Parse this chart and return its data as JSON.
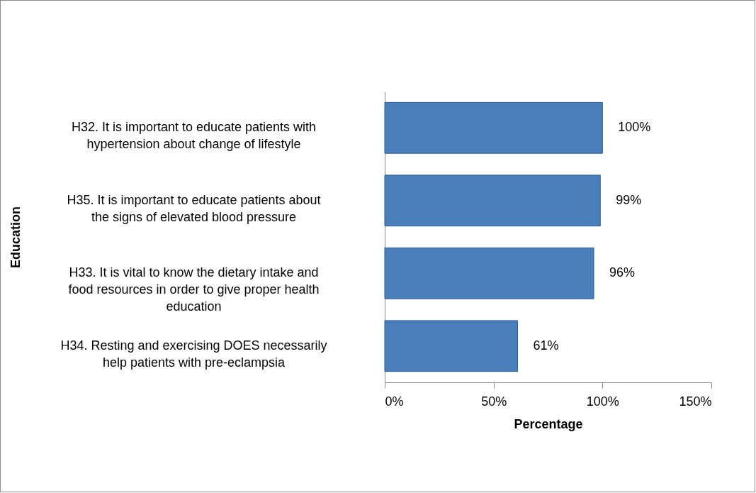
{
  "chart_data": {
    "type": "bar",
    "orientation": "horizontal",
    "xlabel": "Percentage",
    "ylabel": "Education",
    "categories": [
      "H32. It is important to educate patients with hypertension about change of lifestyle",
      "H35. It is important to educate patients about the signs of elevated blood pressure",
      "H33. It is vital to know the dietary intake and food resources in order to give proper health education",
      "H34. Resting and exercising DOES necessarily help patients with pre-eclampsia"
    ],
    "values": [
      100,
      99,
      96,
      61
    ],
    "value_labels": [
      "100%",
      "99%",
      "96%",
      "61%"
    ],
    "color": "#4a7ebb",
    "xlim": [
      0,
      150
    ],
    "xticks": [
      {
        "value": 0,
        "label": "0%"
      },
      {
        "value": 50,
        "label": "50%"
      },
      {
        "value": 100,
        "label": "100%"
      },
      {
        "value": 150,
        "label": "150%"
      }
    ],
    "grid": false
  }
}
